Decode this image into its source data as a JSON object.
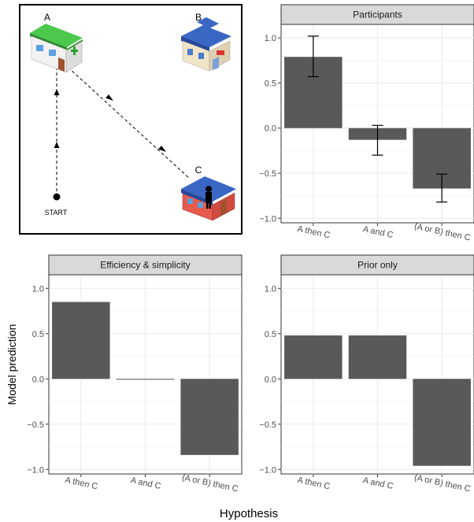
{
  "diagram": {
    "labels": {
      "a": "A",
      "b": "B",
      "c": "C",
      "start": "START"
    }
  },
  "chart_data": [
    {
      "type": "bar",
      "title": "Participants",
      "categories": [
        "A then C",
        "A and C",
        "(A or B) then C"
      ],
      "values": [
        0.79,
        -0.13,
        -0.67
      ],
      "error_low": [
        0.57,
        -0.3,
        -0.82
      ],
      "error_high": [
        1.02,
        0.03,
        -0.51
      ],
      "ylim": [
        -1.05,
        1.15
      ],
      "yticks": [
        -1.0,
        -0.5,
        0.0,
        0.5,
        1.0
      ],
      "tick_labels": [
        "−1.0",
        "−0.5",
        "0.0",
        "0.5",
        "1.0"
      ],
      "bar_color": "#595959",
      "grid": true
    },
    {
      "type": "bar",
      "title": "Efficiency & simplicity",
      "categories": [
        "A then C",
        "A and C",
        "(A or B) then C"
      ],
      "values": [
        0.85,
        -0.005,
        -0.84
      ],
      "ylim": [
        -1.05,
        1.15
      ],
      "yticks": [
        -1.0,
        -0.5,
        0.0,
        0.5,
        1.0
      ],
      "tick_labels": [
        "−1.0",
        "−0.5",
        "0.0",
        "0.5",
        "1.0"
      ],
      "bar_color": "#595959",
      "grid": true
    },
    {
      "type": "bar",
      "title": "Prior only",
      "categories": [
        "A then C",
        "A and C",
        "(A or B) then C"
      ],
      "values": [
        0.48,
        0.48,
        -0.96
      ],
      "ylim": [
        -1.05,
        1.15
      ],
      "yticks": [
        -1.0,
        -0.5,
        0.0,
        0.5,
        1.0
      ],
      "tick_labels": [
        "−1.0",
        "−0.5",
        "0.0",
        "0.5",
        "1.0"
      ],
      "bar_color": "#595959",
      "grid": true
    }
  ],
  "axes": {
    "ylabel": "Model prediction",
    "xlabel": "Hypothesis"
  },
  "colors": {
    "strip_fill": "#d9d9d9",
    "grid": "#ebebeb",
    "house_a": "#3fae3f",
    "house_b": "#3a66c4",
    "house_c": "#e65a4c"
  }
}
